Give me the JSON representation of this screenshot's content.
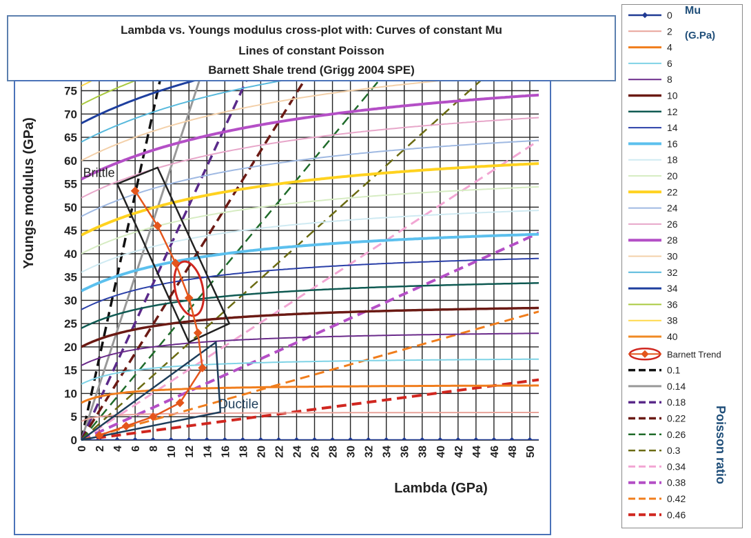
{
  "title_lines": [
    "Lambda vs. Youngs modulus cross-plot with: Curves of constant Mu",
    "Lines of constant Poisson",
    "Barnett Shale trend (Grigg 2004 SPE)"
  ],
  "chart_data": {
    "type": "line",
    "title": "Lambda vs. Youngs modulus cross-plot with: Curves of constant Mu",
    "xlabel": "Lambda (GPa)",
    "ylabel": "Youngs modulus (GPa)",
    "xlim": [
      0,
      51
    ],
    "ylim": [
      0,
      77
    ],
    "xticks": [
      0,
      2,
      4,
      6,
      8,
      10,
      12,
      14,
      16,
      18,
      20,
      22,
      24,
      26,
      28,
      30,
      32,
      34,
      36,
      38,
      40,
      42,
      44,
      46,
      48,
      50
    ],
    "yticks": [
      0,
      5,
      10,
      15,
      20,
      25,
      30,
      35,
      40,
      45,
      50,
      55,
      60,
      65,
      70,
      75
    ],
    "grid": true,
    "legend_position": "right",
    "mu_legend_title": "Mu",
    "mu_legend_unit": "(G.Pa)",
    "poisson_legend_title": "Poisson ratio",
    "mu_curves": [
      {
        "name": "0",
        "mu": 0,
        "color": "#1f3a93",
        "width": 2.5,
        "marker": true
      },
      {
        "name": "2",
        "mu": 2,
        "color": "#e8a39a",
        "width": 2
      },
      {
        "name": "4",
        "mu": 4,
        "color": "#f07d1c",
        "width": 3
      },
      {
        "name": "6",
        "mu": 6,
        "color": "#7fd3e6",
        "width": 2
      },
      {
        "name": "8",
        "mu": 8,
        "color": "#6a2a8a",
        "width": 2
      },
      {
        "name": "10",
        "mu": 10,
        "color": "#6b1a14",
        "width": 3.5
      },
      {
        "name": "12",
        "mu": 12,
        "color": "#0f5a52",
        "width": 2.5
      },
      {
        "name": "14",
        "mu": 14,
        "color": "#2a3fa8",
        "width": 2
      },
      {
        "name": "16",
        "mu": 16,
        "color": "#5cc0ee",
        "width": 4
      },
      {
        "name": "18",
        "mu": 18,
        "color": "#cfeaf2",
        "width": 2
      },
      {
        "name": "20",
        "mu": 20,
        "color": "#d6ecc2",
        "width": 2
      },
      {
        "name": "22",
        "mu": 22,
        "color": "#ffd21f",
        "width": 4
      },
      {
        "name": "24",
        "mu": 24,
        "color": "#9fb9e2",
        "width": 2
      },
      {
        "name": "26",
        "mu": 26,
        "color": "#e7a6c9",
        "width": 2
      },
      {
        "name": "28",
        "mu": 28,
        "color": "#b44fc6",
        "width": 4
      },
      {
        "name": "30",
        "mu": 30,
        "color": "#f3d0a9",
        "width": 2
      },
      {
        "name": "32",
        "mu": 32,
        "color": "#57b9dc",
        "width": 2
      },
      {
        "name": "34",
        "mu": 34,
        "color": "#1e3f9e",
        "width": 3
      },
      {
        "name": "36",
        "mu": 36,
        "color": "#a9c93f",
        "width": 2
      },
      {
        "name": "38",
        "mu": 38,
        "color": "#ffd84a",
        "width": 2
      },
      {
        "name": "40",
        "mu": 40,
        "color": "#f08a24",
        "width": 3
      }
    ],
    "poisson_lines": [
      {
        "name": "0.1",
        "nu": 0.1,
        "color": "#111111",
        "width": 3.5
      },
      {
        "name": "0.14",
        "nu": 0.14,
        "color": "#999999",
        "width": 3
      },
      {
        "name": "0.18",
        "nu": 0.18,
        "color": "#5a2a8a",
        "width": 3.5
      },
      {
        "name": "0.22",
        "nu": 0.22,
        "color": "#6b1a14",
        "width": 3.5
      },
      {
        "name": "0.26",
        "nu": 0.26,
        "color": "#1f6b2a",
        "width": 2.5
      },
      {
        "name": "0.3",
        "nu": 0.3,
        "color": "#6b6b12",
        "width": 2.5
      },
      {
        "name": "0.34",
        "nu": 0.34,
        "color": "#f2a6d3",
        "width": 3
      },
      {
        "name": "0.38",
        "nu": 0.38,
        "color": "#b44fc6",
        "width": 4
      },
      {
        "name": "0.42",
        "nu": 0.42,
        "color": "#f07d1c",
        "width": 3
      },
      {
        "name": "0.46",
        "nu": 0.46,
        "color": "#d0261f",
        "width": 4
      }
    ],
    "barnett_trend": {
      "name": "Barnett Trend",
      "color": "#e4561c",
      "points": [
        {
          "x": 6,
          "y": 53.5
        },
        {
          "x": 8.5,
          "y": 46
        },
        {
          "x": 10.5,
          "y": 38
        },
        {
          "x": 12,
          "y": 30.5
        },
        {
          "x": 13,
          "y": 23
        },
        {
          "x": 13.5,
          "y": 15.5
        },
        {
          "x": 11,
          "y": 8
        },
        {
          "x": 8,
          "y": 5
        },
        {
          "x": 5,
          "y": 3
        },
        {
          "x": 2,
          "y": 1
        }
      ]
    },
    "annotations": [
      {
        "label": "Brittle"
      },
      {
        "label": "Ductile"
      }
    ],
    "legend_marker_color": "#e4561c"
  }
}
